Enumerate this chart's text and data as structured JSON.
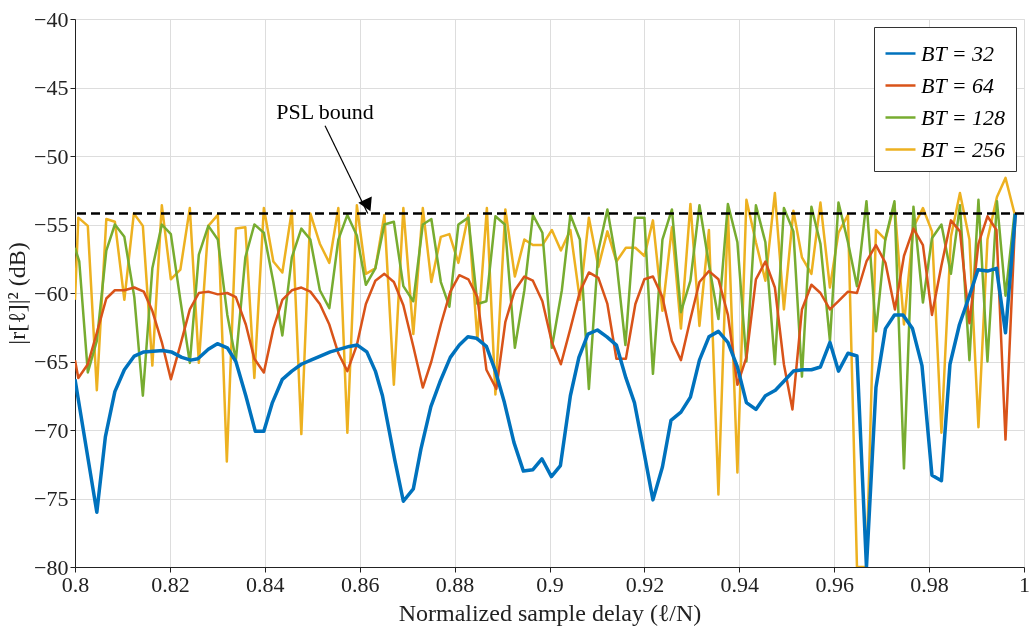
{
  "chart_data": {
    "type": "line",
    "xlabel": "Normalized sample delay (ℓ/N)",
    "ylabel": "|r[ℓ]|² (dB)",
    "xlim": [
      0.8,
      1.0
    ],
    "xticks": [
      0.8,
      0.82,
      0.84,
      0.86,
      0.88,
      0.9,
      0.92,
      0.94,
      0.96,
      0.98,
      1
    ],
    "ylim": [
      -80,
      -40
    ],
    "yticks": [
      -80,
      -75,
      -70,
      -65,
      -60,
      -55,
      -50,
      -45,
      -40
    ],
    "grid": true,
    "legend": "top right",
    "line_style": "solid",
    "marker": "none",
    "ref_lines": [
      {
        "axis": "y",
        "value": -54.2,
        "color": "#000000",
        "line_style": "dashed"
      }
    ],
    "annotations": [
      {
        "text": "PSL bound",
        "x": 0.8617,
        "y": -54.2
      }
    ],
    "series": [
      {
        "name": "BT = 32",
        "color": "#0072bd",
        "x": [
          0.8,
          0.8046,
          0.8064,
          0.8084,
          0.8104,
          0.8125,
          0.8145,
          0.8185,
          0.8203,
          0.8225,
          0.8244,
          0.8259,
          0.8281,
          0.83,
          0.8321,
          0.8339,
          0.836,
          0.838,
          0.8398,
          0.8416,
          0.8437,
          0.8457,
          0.8477,
          0.8497,
          0.8517,
          0.8538,
          0.8558,
          0.8578,
          0.8595,
          0.8615,
          0.8633,
          0.8648,
          0.8674,
          0.8692,
          0.8713,
          0.8729,
          0.875,
          0.8769,
          0.8791,
          0.881,
          0.8828,
          0.8846,
          0.8867,
          0.8886,
          0.8905,
          0.8925,
          0.8945,
          0.8965,
          0.8984,
          0.9004,
          0.9023,
          0.9044,
          0.9062,
          0.9081,
          0.9101,
          0.9121,
          0.9141,
          0.9161,
          0.9179,
          0.9199,
          0.9218,
          0.9238,
          0.9256,
          0.9277,
          0.9297,
          0.9316,
          0.9336,
          0.9356,
          0.9376,
          0.9396,
          0.9415,
          0.9435,
          0.9455,
          0.9476,
          0.9495,
          0.9514,
          0.9534,
          0.9552,
          0.9571,
          0.9591,
          0.9609,
          0.9629,
          0.9648,
          0.9668,
          0.9688,
          0.9708,
          0.9727,
          0.9745,
          0.9765,
          0.9785,
          0.9806,
          0.9826,
          0.9844,
          0.9864,
          0.9883,
          0.9903,
          0.9923,
          0.9942,
          0.9961,
          0.9982
        ],
        "values": [
          -66.3,
          -76.0,
          -70.5,
          -67.2,
          -65.6,
          -64.6,
          -64.3,
          -64.2,
          -64.3,
          -64.7,
          -64.9,
          -64.8,
          -64.1,
          -63.7,
          -64.0,
          -65.0,
          -67.5,
          -70.1,
          -70.1,
          -68.0,
          -66.3,
          -65.7,
          -65.2,
          -64.9,
          -64.6,
          -64.3,
          -64.1,
          -63.9,
          -63.8,
          -64.3,
          -65.7,
          -67.5,
          -72.2,
          -75.2,
          -74.3,
          -71.4,
          -68.3,
          -66.5,
          -64.7,
          -63.8,
          -63.2,
          -63.3,
          -63.9,
          -65.7,
          -68.0,
          -70.9,
          -73.0,
          -72.9,
          -72.1,
          -73.4,
          -72.6,
          -67.5,
          -64.7,
          -63.0,
          -62.7,
          -63.2,
          -63.8,
          -66.2,
          -68.0,
          -71.6,
          -75.1,
          -72.7,
          -69.3,
          -68.7,
          -67.6,
          -64.9,
          -63.2,
          -62.8,
          -63.6,
          -65.4,
          -68.0,
          -68.5,
          -67.5,
          -67.1,
          -66.4,
          -65.7,
          -65.6,
          -65.6,
          -65.4,
          -63.6,
          -65.7,
          -64.4,
          -64.6,
          -80,
          -66.9,
          -62.6,
          -61.6,
          -61.6,
          -62.6,
          -65.3,
          -73.3,
          -73.7,
          -65.2,
          -62.3,
          -60.4,
          -58.3,
          -58.4,
          -58.2,
          -62.9,
          -54.2
        ]
      },
      {
        "name": "BT = 64",
        "color": "#d95319",
        "x": [
          0.8,
          0.8007,
          0.8027,
          0.8046,
          0.8066,
          0.8084,
          0.8104,
          0.8125,
          0.8145,
          0.8163,
          0.8183,
          0.8202,
          0.8222,
          0.8242,
          0.8261,
          0.8281,
          0.8301,
          0.8321,
          0.8339,
          0.836,
          0.8378,
          0.8398,
          0.8418,
          0.8437,
          0.8457,
          0.8477,
          0.8496,
          0.8516,
          0.8536,
          0.8555,
          0.8574,
          0.8594,
          0.8613,
          0.8633,
          0.8652,
          0.8672,
          0.8692,
          0.8713,
          0.8733,
          0.8751,
          0.8771,
          0.8791,
          0.881,
          0.8829,
          0.8848,
          0.8867,
          0.8888,
          0.8907,
          0.8927,
          0.8947,
          0.8965,
          0.8985,
          0.9005,
          0.9024,
          0.9044,
          0.9064,
          0.9083,
          0.9103,
          0.9122,
          0.9141,
          0.9161,
          0.9181,
          0.92,
          0.9218,
          0.9238,
          0.9258,
          0.9277,
          0.9297,
          0.9316,
          0.9336,
          0.9356,
          0.9376,
          0.9396,
          0.9415,
          0.9435,
          0.9455,
          0.9475,
          0.9494,
          0.9512,
          0.9532,
          0.9552,
          0.9571,
          0.9591,
          0.9609,
          0.9629,
          0.9648,
          0.9668,
          0.9688,
          0.9708,
          0.9728,
          0.9747,
          0.9767,
          0.9787,
          0.9806,
          0.9826,
          0.9846,
          0.9865,
          0.9885,
          0.9904,
          0.9923,
          0.9942,
          0.9961,
          0.9982
        ],
        "values": [
          -64.9,
          -66.2,
          -65.2,
          -62.9,
          -60.4,
          -59.8,
          -59.8,
          -59.6,
          -59.9,
          -61.3,
          -63.6,
          -66.3,
          -63.8,
          -61.2,
          -60.0,
          -59.9,
          -60.1,
          -60.0,
          -60.3,
          -62.3,
          -64.8,
          -65.8,
          -62.6,
          -60.5,
          -59.8,
          -59.6,
          -59.9,
          -60.8,
          -62.3,
          -64.4,
          -65.7,
          -63.8,
          -60.8,
          -59.1,
          -58.6,
          -59.2,
          -60.9,
          -63.9,
          -66.9,
          -65.0,
          -62.3,
          -59.9,
          -58.7,
          -59.0,
          -60.3,
          -65.6,
          -67.0,
          -62.1,
          -59.8,
          -58.8,
          -59.1,
          -60.6,
          -63.6,
          -65.2,
          -62.6,
          -59.9,
          -58.5,
          -58.9,
          -60.8,
          -64.8,
          -64.8,
          -60.8,
          -59.0,
          -58.8,
          -60.3,
          -63.5,
          -64.9,
          -61.9,
          -59.2,
          -58.4,
          -59.0,
          -61.6,
          -66.7,
          -64.7,
          -59.0,
          -57.7,
          -59.6,
          -65.2,
          -68.5,
          -61.2,
          -59.4,
          -60.0,
          -61.2,
          -60.6,
          -59.9,
          -60.0,
          -57.7,
          -56.5,
          -57.8,
          -61.2,
          -57.3,
          -55.3,
          -56.5,
          -61.6,
          -58.0,
          -54.7,
          -55.5,
          -62.2,
          -56.4,
          -54.4,
          -55.4,
          -70.7,
          -54.2
        ]
      },
      {
        "name": "BT = 128",
        "color": "#77ac30",
        "x": [
          0.8,
          0.8009,
          0.8027,
          0.8046,
          0.8066,
          0.8084,
          0.8104,
          0.8125,
          0.8143,
          0.8163,
          0.8183,
          0.8202,
          0.8222,
          0.8242,
          0.8261,
          0.8281,
          0.8301,
          0.8321,
          0.8339,
          0.8359,
          0.8378,
          0.8398,
          0.8418,
          0.8437,
          0.8457,
          0.8477,
          0.8496,
          0.8516,
          0.8536,
          0.8555,
          0.8574,
          0.8594,
          0.8613,
          0.8633,
          0.8652,
          0.8672,
          0.8692,
          0.8713,
          0.8733,
          0.8751,
          0.8771,
          0.8789,
          0.8808,
          0.8829,
          0.8848,
          0.8867,
          0.8886,
          0.8906,
          0.8927,
          0.8947,
          0.8965,
          0.8985,
          0.9005,
          0.9026,
          0.9044,
          0.9064,
          0.9083,
          0.9103,
          0.9122,
          0.9141,
          0.916,
          0.918,
          0.92,
          0.9218,
          0.9238,
          0.9258,
          0.9277,
          0.9297,
          0.9316,
          0.9336,
          0.9356,
          0.9376,
          0.9396,
          0.9415,
          0.9435,
          0.9455,
          0.9475,
          0.9494,
          0.9514,
          0.9532,
          0.9552,
          0.9571,
          0.9591,
          0.9609,
          0.9629,
          0.9648,
          0.9668,
          0.9688,
          0.9708,
          0.9727,
          0.9747,
          0.9767,
          0.9787,
          0.9806,
          0.9826,
          0.9846,
          0.9865,
          0.9885,
          0.9904,
          0.9923,
          0.9943,
          0.9961,
          0.998
        ],
        "values": [
          -56.7,
          -57.7,
          -65.8,
          -63.5,
          -56.9,
          -55.0,
          -55.9,
          -60.3,
          -67.5,
          -58.2,
          -55.0,
          -55.7,
          -60.5,
          -65.1,
          -57.2,
          -55.1,
          -56.1,
          -61.6,
          -64.9,
          -57.4,
          -55.0,
          -55.6,
          -59.2,
          -63.1,
          -57.4,
          -55.3,
          -56.1,
          -59.8,
          -61.1,
          -56.1,
          -54.3,
          -55.8,
          -59.4,
          -58.2,
          -55.0,
          -54.8,
          -59.5,
          -60.6,
          -55.0,
          -54.6,
          -59.2,
          -61.0,
          -55.0,
          -54.5,
          -60.8,
          -60.6,
          -54.4,
          -55.0,
          -64.0,
          -59.8,
          -54.3,
          -55.6,
          -64.0,
          -59.8,
          -54.3,
          -56.1,
          -67.0,
          -56.9,
          -53.9,
          -57.7,
          -63.8,
          -54.5,
          -54.5,
          -65.9,
          -56.1,
          -53.9,
          -61.4,
          -59.1,
          -53.6,
          -57.9,
          -61.9,
          -53.5,
          -56.3,
          -65.0,
          -53.6,
          -56.3,
          -65.2,
          -53.8,
          -55.5,
          -66.1,
          -53.7,
          -56.4,
          -63.5,
          -53.4,
          -56.3,
          -59.5,
          -53.3,
          -62.8,
          -56.0,
          -53.3,
          -72.8,
          -53.7,
          -60.7,
          -56.0,
          -55.0,
          -58.6,
          -53.6,
          -64.9,
          -53.2,
          -65.0,
          -53.3,
          -60.2,
          -54.2
        ]
      },
      {
        "name": "BT = 256",
        "color": "#edb120",
        "x": [
          0.8,
          0.8007,
          0.8027,
          0.8046,
          0.8066,
          0.8084,
          0.8104,
          0.8124,
          0.8143,
          0.8163,
          0.8183,
          0.8202,
          0.8222,
          0.8242,
          0.8261,
          0.8281,
          0.8301,
          0.832,
          0.8339,
          0.8359,
          0.8378,
          0.8398,
          0.8418,
          0.8437,
          0.8457,
          0.8477,
          0.8496,
          0.8516,
          0.8536,
          0.8555,
          0.8574,
          0.8594,
          0.8613,
          0.8633,
          0.8652,
          0.8672,
          0.8692,
          0.8713,
          0.8733,
          0.8751,
          0.8771,
          0.8789,
          0.8808,
          0.8829,
          0.8848,
          0.8868,
          0.8886,
          0.8907,
          0.8927,
          0.8947,
          0.8965,
          0.8985,
          0.9005,
          0.9024,
          0.9044,
          0.9064,
          0.9083,
          0.9103,
          0.9122,
          0.9141,
          0.9161,
          0.9181,
          0.92,
          0.9218,
          0.9238,
          0.9258,
          0.9277,
          0.9297,
          0.9316,
          0.9336,
          0.9356,
          0.9376,
          0.9396,
          0.9415,
          0.9435,
          0.9455,
          0.9475,
          0.9494,
          0.9514,
          0.9532,
          0.9552,
          0.9571,
          0.9591,
          0.9609,
          0.9629,
          0.9648,
          0.9668,
          0.9688,
          0.9708,
          0.9727,
          0.9747,
          0.9767,
          0.9787,
          0.9806,
          0.9826,
          0.9846,
          0.9865,
          0.9885,
          0.9904,
          0.9923,
          0.9943,
          0.9961,
          0.998
        ],
        "values": [
          -60.5,
          -54.5,
          -55.1,
          -67.1,
          -54.6,
          -54.8,
          -60.5,
          -54.2,
          -55.1,
          -65.3,
          -53.6,
          -59.0,
          -58.3,
          -53.8,
          -65.1,
          -55.1,
          -54.3,
          -72.3,
          -55.3,
          -55.2,
          -66.2,
          -53.8,
          -57.7,
          -58.5,
          -54.0,
          -70.3,
          -54.2,
          -56.4,
          -57.8,
          -53.8,
          -70.2,
          -53.6,
          -58.6,
          -58.2,
          -54.3,
          -66.7,
          -53.8,
          -63.0,
          -53.8,
          -59.2,
          -55.9,
          -55.7,
          -57.8,
          -54.3,
          -63.4,
          -53.8,
          -67.4,
          -53.9,
          -58.8,
          -56.1,
          -56.5,
          -56.5,
          -55.4,
          -56.9,
          -55.4,
          -60.5,
          -54.5,
          -58.1,
          -55.5,
          -57.7,
          -56.7,
          -56.7,
          -57.3,
          -54.7,
          -61.3,
          -55.2,
          -62.6,
          -53.5,
          -62.4,
          -55.4,
          -74.7,
          -54.1,
          -73.1,
          -53.2,
          -56.3,
          -59.1,
          -52.7,
          -61.2,
          -54.0,
          -57.4,
          -58.6,
          -53.4,
          -59.6,
          -55.6,
          -54.3,
          -80,
          -80,
          -55.4,
          -56.1,
          -53.5,
          -62.3,
          -55.2,
          -53.8,
          -55.5,
          -70.2,
          -55.9,
          -52.7,
          -56.1,
          -69.8,
          -56.1,
          -53.0,
          -51.6,
          -54.2
        ]
      }
    ]
  }
}
